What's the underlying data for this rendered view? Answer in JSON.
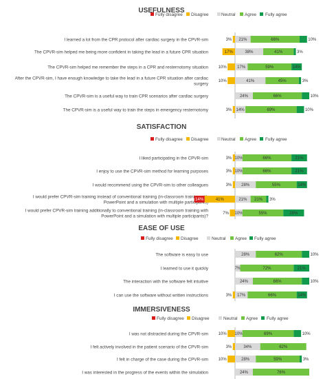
{
  "colors": {
    "fully_disagree": "#d91c1c",
    "disagree": "#f5b800",
    "neutral": "#d9d9d9",
    "agree": "#70c43f",
    "fully_agree": "#129a4c",
    "axis": "#a6a6a6"
  },
  "legend": [
    "Fully disagree",
    "Disagree",
    "Neutral",
    "Agree",
    "Fully agree"
  ],
  "chart_data": [
    {
      "type": "bar",
      "stacking": "diverging",
      "title": "USEFULNESS",
      "legend_position": "top-right",
      "series_order": [
        "Fully disagree",
        "Disagree",
        "Neutral",
        "Agree",
        "Fully agree"
      ],
      "items": [
        {
          "label": [
            "I learned a lot from the CPR protocol after cardiac surgery in the CPVR-sim"
          ],
          "values": [
            0,
            3,
            21,
            66,
            10
          ]
        },
        {
          "label": [
            "The CPVR-sim helped me being more confident in taking the lead in a future CPR situation"
          ],
          "values": [
            0,
            17,
            38,
            41,
            3
          ]
        },
        {
          "label": [
            "The CPVR-sim helped me remember the steps in a CPR and resternotomy situation"
          ],
          "values": [
            0,
            10,
            17,
            59,
            14
          ]
        },
        {
          "label": [
            "After the CPVR-sim, I have enough knowledge to take the lead in a future CPR situation after cardiac",
            "surgery"
          ],
          "values": [
            0,
            10,
            41,
            45,
            3
          ]
        },
        {
          "label": [
            "The CPVR-sim is a useful way to train CPR scenarios after cardiac surgery"
          ],
          "values": [
            0,
            0,
            24,
            66,
            10
          ]
        },
        {
          "label": [
            "The CPVR-sim is a useful way to train the steps in emergency resternotomy"
          ],
          "values": [
            0,
            3,
            14,
            69,
            10
          ]
        }
      ]
    },
    {
      "type": "bar",
      "stacking": "diverging",
      "title": "SATISFACTION",
      "legend_position": "top-right",
      "series_order": [
        "Fully disagree",
        "Disagree",
        "Neutral",
        "Agree",
        "Fully agree"
      ],
      "items": [
        {
          "label": [
            "I liked participating in the CPVR-sim"
          ],
          "values": [
            0,
            3,
            10,
            66,
            21
          ]
        },
        {
          "label": [
            "I enjoy to use the CPVR-sim method for learning purposes"
          ],
          "values": [
            0,
            3,
            10,
            66,
            21
          ]
        },
        {
          "label": [
            "I would recommend using the CPVR-sim to other colleagues"
          ],
          "values": [
            0,
            3,
            28,
            55,
            14
          ]
        },
        {
          "label": [
            "I would prefer CPVR-sim training instead of conventional training (in-classroom training with",
            "PowerPoint and a simulation with multiple participants)"
          ],
          "values": [
            14,
            41,
            21,
            21,
            3
          ]
        },
        {
          "label": [
            "I would prefer CPVR-sim training additionally to conventional training (in-classroom training with",
            "PowerPoint and a simulation with multiple participants)?"
          ],
          "values": [
            0,
            7,
            10,
            55,
            28
          ]
        }
      ]
    },
    {
      "type": "bar",
      "stacking": "diverging",
      "title": "EASE OF USE",
      "legend_position": "top-right",
      "series_order": [
        "Fully disagree",
        "Disagree",
        "Neutral",
        "Agree",
        "Fully agree"
      ],
      "items": [
        {
          "label": [
            "The software is easy to use"
          ],
          "values": [
            0,
            0,
            28,
            62,
            10
          ]
        },
        {
          "label": [
            "I learned to use it quickly"
          ],
          "values": [
            0,
            0,
            7,
            72,
            21
          ]
        },
        {
          "label": [
            "The interaction with the software felt intuitive"
          ],
          "values": [
            0,
            0,
            24,
            66,
            10
          ]
        },
        {
          "label": [
            "I can use the software without written instructions"
          ],
          "values": [
            0,
            3,
            17,
            66,
            14
          ]
        }
      ]
    },
    {
      "type": "bar",
      "stacking": "diverging",
      "title": "IMMERSIVENESS",
      "legend_position": "top-right",
      "series_order": [
        "Fully disagree",
        "Disagree",
        "Neutral",
        "Agree",
        "Fully agree"
      ],
      "items": [
        {
          "label": [
            "I was not distracted during the CPVR-sim"
          ],
          "values": [
            0,
            10,
            10,
            69,
            10
          ]
        },
        {
          "label": [
            "I felt actively involved in the patient scenario of the CPVR-sim"
          ],
          "values": [
            0,
            3,
            34,
            62,
            0
          ]
        },
        {
          "label": [
            "I felt in charge of the case during the CPVR-sim"
          ],
          "values": [
            0,
            10,
            28,
            59,
            3
          ]
        },
        {
          "label": [
            "I was interested in the progress of the events within the simulation"
          ],
          "values": [
            0,
            0,
            24,
            76,
            0
          ]
        }
      ]
    }
  ]
}
